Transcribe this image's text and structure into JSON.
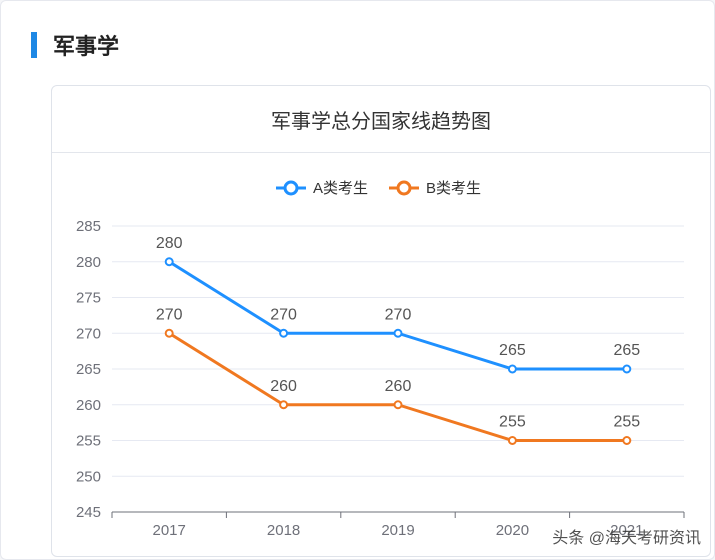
{
  "section": {
    "title": "军事学"
  },
  "card": {
    "title": "军事学总分国家线趋势图"
  },
  "watermark": "头条 @海天考研资讯",
  "colors": {
    "seriesA": "#1e90ff",
    "seriesB": "#f07820",
    "accent": "#1e88e5"
  },
  "chart_data": {
    "type": "line",
    "title": "军事学总分国家线趋势图",
    "categories": [
      "2017",
      "2018",
      "2019",
      "2020",
      "2021"
    ],
    "series": [
      {
        "name": "A类考生",
        "values": [
          280,
          270,
          270,
          265,
          265
        ]
      },
      {
        "name": "B类考生",
        "values": [
          270,
          260,
          260,
          255,
          255
        ]
      }
    ],
    "y_ticks": [
      245,
      250,
      255,
      260,
      265,
      270,
      275,
      280,
      285
    ],
    "ylim": [
      245,
      285
    ],
    "legend": "top-center",
    "grid": true
  }
}
